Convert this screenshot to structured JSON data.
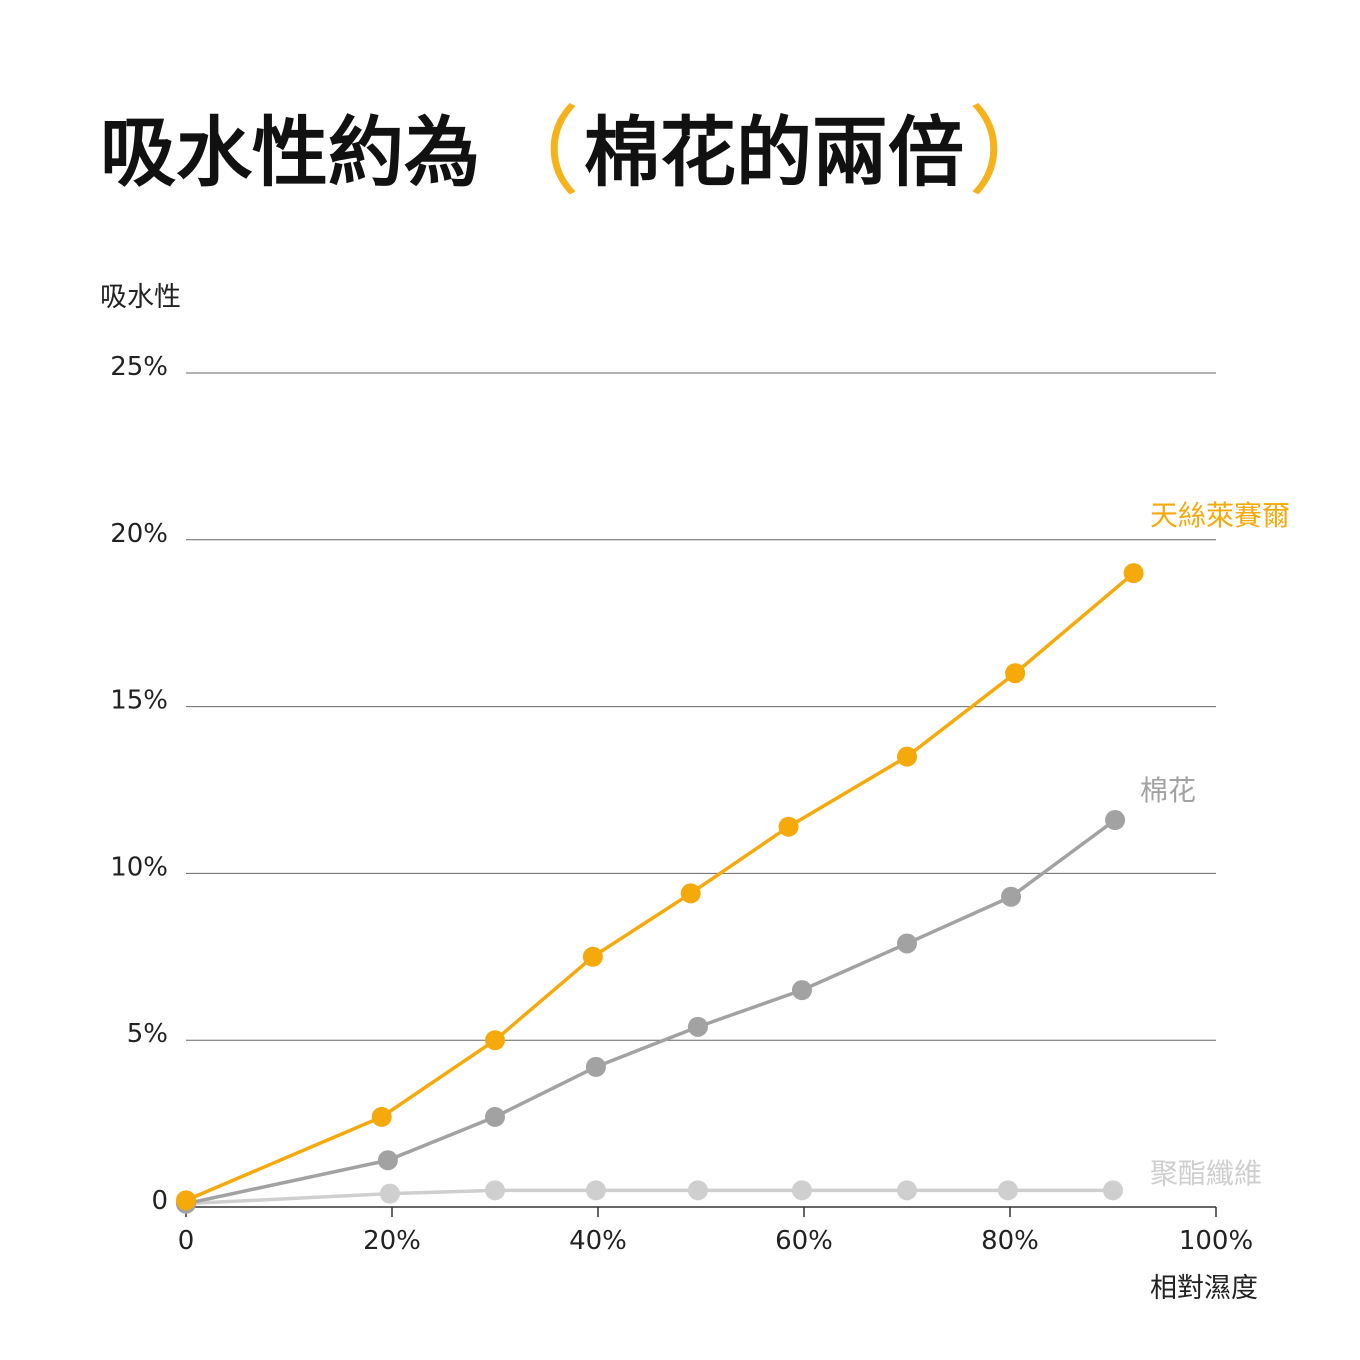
{
  "chart_data": {
    "type": "line",
    "title_prefix": "吸水性約為",
    "title_paren_open": "（",
    "title_highlight": "棉花的兩倍",
    "title_paren_close": "）",
    "ylabel": "吸水性",
    "xlabel": "相對濕度",
    "xlim": [
      0,
      100
    ],
    "ylim": [
      0,
      25
    ],
    "xticks": [
      0,
      20,
      40,
      60,
      80,
      100
    ],
    "xtick_labels": [
      "0",
      "20%",
      "40%",
      "60%",
      "80%",
      "100%"
    ],
    "yticks": [
      0,
      5,
      10,
      15,
      20,
      25
    ],
    "ytick_labels": [
      "0",
      "5%",
      "10%",
      "15%",
      "20%",
      "25%"
    ],
    "grid": "horizontal",
    "colors": {
      "accent": "#f5b21a"
    },
    "series": [
      {
        "name": "天絲萊賽爾",
        "color": "#f5a90a",
        "x": [
          0,
          19,
          30,
          39.5,
          49,
          58.5,
          70,
          80.5,
          92
        ],
        "y": [
          0.2,
          2.7,
          5.0,
          7.5,
          9.4,
          11.4,
          13.5,
          16.0,
          19.0
        ]
      },
      {
        "name": "棉花",
        "color": "#a2a2a2",
        "x": [
          0,
          19.6,
          30,
          39.8,
          49.7,
          59.8,
          70,
          80.1,
          90.2
        ],
        "y": [
          0.1,
          1.4,
          2.7,
          4.2,
          5.4,
          6.5,
          7.9,
          9.3,
          11.6
        ]
      },
      {
        "name": "聚酯纖維",
        "color": "#cfcfcf",
        "x": [
          0,
          19.8,
          30,
          39.8,
          49.7,
          59.8,
          70,
          79.8,
          90
        ],
        "y": [
          0.1,
          0.4,
          0.5,
          0.5,
          0.5,
          0.5,
          0.5,
          0.5,
          0.5
        ]
      }
    ]
  }
}
